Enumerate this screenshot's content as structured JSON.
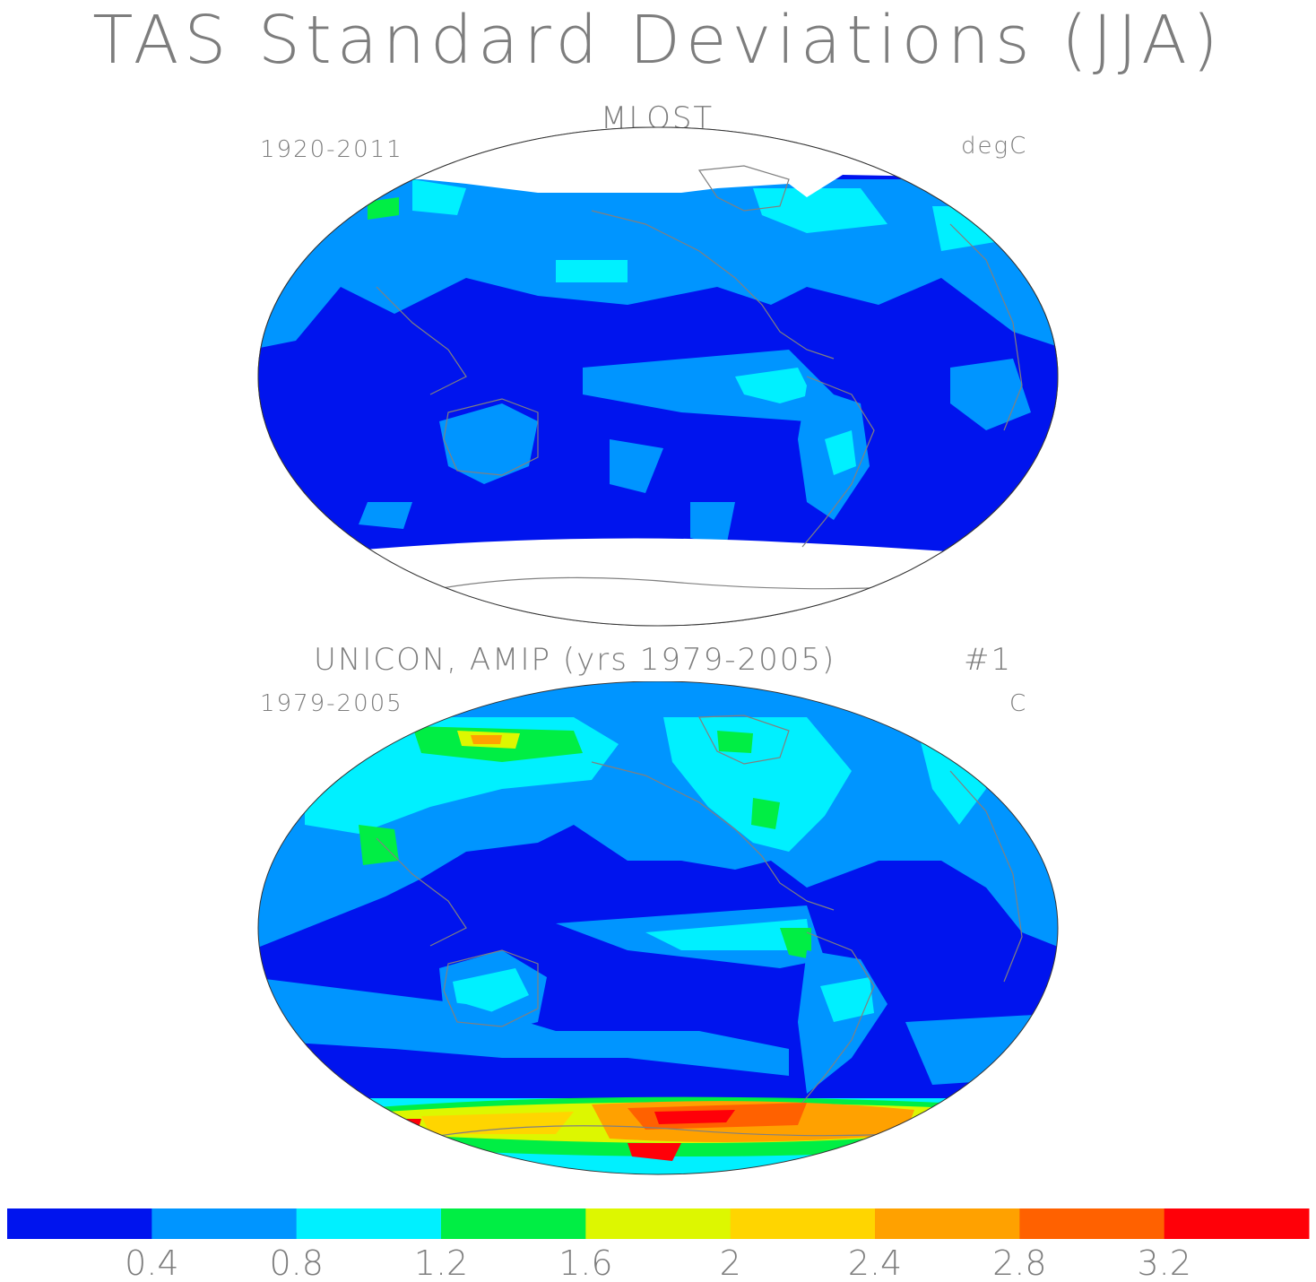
{
  "title": "TAS Standard Deviations (JJA)",
  "panels": [
    {
      "title": "MLOST",
      "period": "1920-2011",
      "units": "degC",
      "tag": ""
    },
    {
      "title": "UNICON, AMIP (yrs 1979-2005)",
      "period": "1979-2005",
      "units": "C",
      "tag": "#1"
    }
  ],
  "colorbar": {
    "colors": [
      "#0014ee",
      "#0095ff",
      "#00f0ff",
      "#00ee44",
      "#ddf700",
      "#ffd500",
      "#ffa100",
      "#ff6100",
      "#ff0008"
    ],
    "tick_labels": [
      "0.4",
      "0.8",
      "1.2",
      "1.6",
      "2",
      "2.4",
      "2.8",
      "3.2"
    ]
  },
  "colors": {
    "coastline": "#808080",
    "land_mask": "#ffffff"
  }
}
